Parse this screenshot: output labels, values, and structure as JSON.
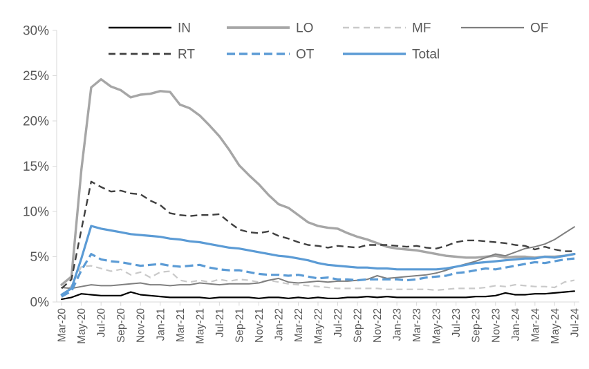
{
  "chart_data": {
    "type": "line",
    "title": "",
    "xlabel": "",
    "ylabel": "",
    "ylim": [
      0,
      30
    ],
    "y_tick_step": 5,
    "grid": false,
    "legend_position": "top",
    "axis_color": "#D9D9D9",
    "text_color": "#595959",
    "y_tick_labels": [
      "0%",
      "5%",
      "10%",
      "15%",
      "20%",
      "25%",
      "30%"
    ],
    "x_tick_labels": [
      "Mar-20",
      "May-20",
      "Jul-20",
      "Sep-20",
      "Nov-20",
      "Jan-21",
      "Mar-21",
      "May-21",
      "Jul-21",
      "Sep-21",
      "Nov-21",
      "Jan-22",
      "Mar-22",
      "May-22",
      "Jul-22",
      "Sep-22",
      "Nov-22",
      "Jan-23",
      "Mar-23",
      "May-23",
      "Jul-23",
      "Sep-23",
      "Nov-23",
      "Jan-24",
      "Mar-24",
      "May-24",
      "Jul-24"
    ],
    "categories": [
      "Mar-20",
      "Apr-20",
      "May-20",
      "Jun-20",
      "Jul-20",
      "Aug-20",
      "Sep-20",
      "Oct-20",
      "Nov-20",
      "Dec-20",
      "Jan-21",
      "Feb-21",
      "Mar-21",
      "Apr-21",
      "May-21",
      "Jun-21",
      "Jul-21",
      "Aug-21",
      "Sep-21",
      "Oct-21",
      "Nov-21",
      "Dec-21",
      "Jan-22",
      "Feb-22",
      "Mar-22",
      "Apr-22",
      "May-22",
      "Jun-22",
      "Jul-22",
      "Aug-22",
      "Sep-22",
      "Oct-22",
      "Nov-22",
      "Dec-22",
      "Jan-23",
      "Feb-23",
      "Mar-23",
      "Apr-23",
      "May-23",
      "Jun-23",
      "Jul-23",
      "Aug-23",
      "Sep-23",
      "Oct-23",
      "Nov-23",
      "Dec-23",
      "Jan-24",
      "Feb-24",
      "Mar-24",
      "Apr-24",
      "May-24",
      "Jun-24",
      "Jul-24"
    ],
    "legend_rows": [
      [
        "IN",
        "LO",
        "MF",
        "OF"
      ],
      [
        "RT",
        "OT",
        "Total"
      ]
    ],
    "series": [
      {
        "name": "IN",
        "color": "#000000",
        "line_style": "solid",
        "values": [
          0.3,
          0.5,
          0.9,
          0.8,
          0.7,
          0.7,
          0.7,
          1.1,
          0.8,
          0.7,
          0.6,
          0.5,
          0.5,
          0.5,
          0.5,
          0.4,
          0.5,
          0.5,
          0.5,
          0.5,
          0.4,
          0.5,
          0.5,
          0.4,
          0.5,
          0.4,
          0.5,
          0.4,
          0.4,
          0.5,
          0.5,
          0.6,
          0.5,
          0.6,
          0.5,
          0.5,
          0.5,
          0.5,
          0.5,
          0.5,
          0.5,
          0.5,
          0.6,
          0.6,
          0.7,
          1.0,
          0.8,
          0.8,
          0.9,
          0.9,
          1.0,
          1.1,
          1.2
        ]
      },
      {
        "name": "LO",
        "color": "#A6A6A6",
        "line_style": "solid",
        "values": [
          1.9,
          2.8,
          14.6,
          23.7,
          24.6,
          23.8,
          23.4,
          22.6,
          22.9,
          23.0,
          23.3,
          23.2,
          21.8,
          21.4,
          20.6,
          19.5,
          18.3,
          16.8,
          15.1,
          14.0,
          13.0,
          11.8,
          10.8,
          10.4,
          9.6,
          8.8,
          8.4,
          8.2,
          8.1,
          7.6,
          7.2,
          6.9,
          6.5,
          6.1,
          5.9,
          5.8,
          5.7,
          5.5,
          5.3,
          5.1,
          5.0,
          4.9,
          4.9,
          5.0,
          5.1,
          4.9,
          5.0,
          5.0,
          4.9,
          5.0,
          5.0,
          5.1,
          5.3
        ]
      },
      {
        "name": "MF",
        "color": "#C9C9C9",
        "line_style": "dashed",
        "values": [
          0.5,
          1.8,
          3.9,
          4.0,
          3.7,
          3.4,
          3.6,
          3.0,
          3.3,
          2.7,
          3.3,
          3.4,
          2.4,
          2.2,
          2.4,
          2.2,
          2.5,
          2.3,
          2.5,
          2.4,
          2.2,
          2.4,
          2.2,
          2.0,
          1.9,
          1.8,
          1.7,
          1.6,
          1.5,
          1.5,
          1.5,
          1.5,
          1.5,
          1.4,
          1.4,
          1.4,
          1.4,
          1.4,
          1.3,
          1.4,
          1.5,
          1.5,
          1.5,
          1.6,
          1.8,
          1.7,
          1.9,
          1.8,
          1.7,
          1.7,
          1.6,
          2.2,
          2.4
        ]
      },
      {
        "name": "OF",
        "color": "#7F7F7F",
        "line_style": "solid",
        "values": [
          1.6,
          1.5,
          1.7,
          1.9,
          1.8,
          1.8,
          1.9,
          2.0,
          2.1,
          1.9,
          1.9,
          1.8,
          1.9,
          1.9,
          2.1,
          2.0,
          1.9,
          2.0,
          2.0,
          2.0,
          2.1,
          2.4,
          2.6,
          2.2,
          2.1,
          2.2,
          2.3,
          2.2,
          2.3,
          2.3,
          2.4,
          2.5,
          2.9,
          2.6,
          2.7,
          2.8,
          2.9,
          3.0,
          3.2,
          3.5,
          3.9,
          4.2,
          4.5,
          4.9,
          5.3,
          5.1,
          5.5,
          5.9,
          6.1,
          6.4,
          6.9,
          7.6,
          8.3
        ]
      },
      {
        "name": "RT",
        "color": "#404040",
        "line_style": "dashed",
        "values": [
          1.5,
          2.5,
          8.0,
          13.3,
          12.7,
          12.2,
          12.3,
          12.0,
          11.9,
          11.2,
          10.7,
          9.8,
          9.6,
          9.5,
          9.6,
          9.6,
          9.7,
          8.8,
          8.0,
          7.7,
          7.6,
          7.8,
          7.3,
          7.0,
          6.6,
          6.3,
          6.2,
          6.0,
          6.2,
          6.1,
          6.0,
          6.3,
          6.3,
          6.3,
          6.2,
          6.1,
          6.2,
          6.0,
          5.9,
          6.2,
          6.6,
          6.8,
          6.8,
          6.7,
          6.6,
          6.5,
          6.3,
          6.2,
          5.8,
          6.1,
          5.8,
          5.6,
          5.6
        ]
      },
      {
        "name": "OT",
        "color": "#5B9BD5",
        "line_style": "dashed",
        "values": [
          0.6,
          1.2,
          3.5,
          5.3,
          4.7,
          4.5,
          4.4,
          4.2,
          4.0,
          4.1,
          4.2,
          4.0,
          3.9,
          4.0,
          4.1,
          3.8,
          3.6,
          3.5,
          3.5,
          3.3,
          3.1,
          3.0,
          3.0,
          2.9,
          3.0,
          2.8,
          2.6,
          2.7,
          2.5,
          2.5,
          2.4,
          2.5,
          2.5,
          2.5,
          2.5,
          2.4,
          2.5,
          2.7,
          2.8,
          2.9,
          3.2,
          3.3,
          3.5,
          3.7,
          3.6,
          3.8,
          4.0,
          4.2,
          4.4,
          4.3,
          4.5,
          4.7,
          4.8
        ]
      },
      {
        "name": "Total",
        "color": "#5B9BD5",
        "line_style": "solid",
        "values": [
          0.8,
          1.5,
          4.8,
          8.4,
          8.1,
          7.9,
          7.7,
          7.5,
          7.4,
          7.3,
          7.2,
          7.0,
          6.9,
          6.7,
          6.6,
          6.4,
          6.2,
          6.0,
          5.9,
          5.7,
          5.5,
          5.3,
          5.1,
          5.0,
          4.8,
          4.6,
          4.3,
          4.1,
          4.0,
          3.9,
          3.8,
          3.8,
          3.7,
          3.7,
          3.6,
          3.6,
          3.6,
          3.6,
          3.6,
          3.7,
          3.9,
          4.1,
          4.3,
          4.4,
          4.5,
          4.6,
          4.7,
          4.8,
          4.8,
          5.0,
          4.9,
          5.1,
          5.3
        ]
      }
    ]
  }
}
